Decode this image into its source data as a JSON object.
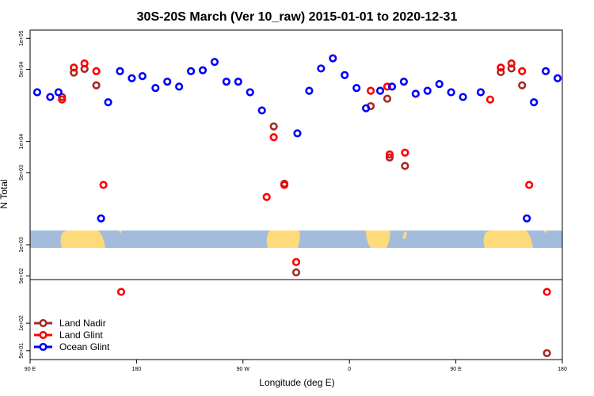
{
  "chart_data": {
    "type": "scatter",
    "title": "30S-20S March (Ver 10_raw)   2015-01-01 to 2020-12-31",
    "xlabel": "Longitude (deg E)",
    "ylabel": "N Total",
    "x_ticks": [
      {
        "value": 0,
        "label": "90 E"
      },
      {
        "value": 90,
        "label": "180"
      },
      {
        "value": 180,
        "label": "90 W"
      },
      {
        "value": 270,
        "label": "0"
      },
      {
        "value": 360,
        "label": "90 E"
      },
      {
        "value": 450,
        "label": "180"
      }
    ],
    "x_range": [
      0,
      450
    ],
    "upper_panel": {
      "scale": "log",
      "ylim": [
        460,
        120000
      ],
      "y_ticks": [
        {
          "value": 500,
          "label": "5e+02"
        },
        {
          "value": 1000,
          "label": "1e+03"
        },
        {
          "value": 5000,
          "label": "5e+03"
        },
        {
          "value": 10000,
          "label": "1e+04"
        },
        {
          "value": 50000,
          "label": "5e+04"
        },
        {
          "value": 100000,
          "label": "1e+05"
        }
      ],
      "map_band": {
        "ocean_color": "#a4bcdc",
        "land_color": "#fedb7a"
      }
    },
    "lower_panel": {
      "scale": "log",
      "ylim": [
        40,
        300
      ],
      "y_ticks": [
        {
          "value": 50,
          "label": "5e+01"
        },
        {
          "value": 100,
          "label": "1e+02"
        }
      ]
    },
    "series": [
      {
        "name": "Land Nadir",
        "color": "#a52a2a",
        "points": [
          {
            "x": 27,
            "y": 27000
          },
          {
            "x": 37,
            "y": 46500
          },
          {
            "x": 46,
            "y": 50500
          },
          {
            "x": 56,
            "y": 35000
          },
          {
            "x": 206,
            "y": 14000
          },
          {
            "x": 215,
            "y": 3900
          },
          {
            "x": 225,
            "y": 540
          },
          {
            "x": 288,
            "y": 22000
          },
          {
            "x": 302,
            "y": 26000
          },
          {
            "x": 304,
            "y": 7000
          },
          {
            "x": 317,
            "y": 5800
          },
          {
            "x": 398,
            "y": 47000
          },
          {
            "x": 407,
            "y": 51000
          },
          {
            "x": 416,
            "y": 35000
          },
          {
            "x": 437,
            "y": 47
          }
        ]
      },
      {
        "name": "Land Glint",
        "color": "#ff0000",
        "points": [
          {
            "x": 27,
            "y": 25500
          },
          {
            "x": 37,
            "y": 52000
          },
          {
            "x": 46,
            "y": 57000
          },
          {
            "x": 56,
            "y": 48000
          },
          {
            "x": 62,
            "y": 3800
          },
          {
            "x": 77,
            "y": 220
          },
          {
            "x": 200,
            "y": 2900
          },
          {
            "x": 206,
            "y": 11000
          },
          {
            "x": 215,
            "y": 3800
          },
          {
            "x": 225,
            "y": 680
          },
          {
            "x": 288,
            "y": 31000
          },
          {
            "x": 302,
            "y": 34000
          },
          {
            "x": 304,
            "y": 7500
          },
          {
            "x": 317,
            "y": 7800
          },
          {
            "x": 389,
            "y": 25500
          },
          {
            "x": 398,
            "y": 52000
          },
          {
            "x": 407,
            "y": 57000
          },
          {
            "x": 416,
            "y": 48000
          },
          {
            "x": 422,
            "y": 3800
          },
          {
            "x": 437,
            "y": 220
          }
        ]
      },
      {
        "name": "Ocean Glint",
        "color": "#0000ff",
        "points": [
          {
            "x": 6,
            "y": 30000
          },
          {
            "x": 17,
            "y": 27000
          },
          {
            "x": 24,
            "y": 30000
          },
          {
            "x": 60,
            "y": 1800
          },
          {
            "x": 66,
            "y": 24000
          },
          {
            "x": 76,
            "y": 48000
          },
          {
            "x": 86,
            "y": 41000
          },
          {
            "x": 95,
            "y": 43000
          },
          {
            "x": 106,
            "y": 33000
          },
          {
            "x": 116,
            "y": 38000
          },
          {
            "x": 126,
            "y": 34000
          },
          {
            "x": 136,
            "y": 48000
          },
          {
            "x": 146,
            "y": 49000
          },
          {
            "x": 156,
            "y": 59000
          },
          {
            "x": 166,
            "y": 38000
          },
          {
            "x": 176,
            "y": 38000
          },
          {
            "x": 186,
            "y": 30000
          },
          {
            "x": 196,
            "y": 20000
          },
          {
            "x": 226,
            "y": 12000
          },
          {
            "x": 236,
            "y": 31000
          },
          {
            "x": 246,
            "y": 51000
          },
          {
            "x": 256,
            "y": 64000
          },
          {
            "x": 266,
            "y": 44000
          },
          {
            "x": 276,
            "y": 33000
          },
          {
            "x": 284,
            "y": 21000
          },
          {
            "x": 296,
            "y": 31000
          },
          {
            "x": 306,
            "y": 34000
          },
          {
            "x": 316,
            "y": 38000
          },
          {
            "x": 326,
            "y": 29000
          },
          {
            "x": 336,
            "y": 31000
          },
          {
            "x": 346,
            "y": 36000
          },
          {
            "x": 356,
            "y": 30000
          },
          {
            "x": 366,
            "y": 27000
          },
          {
            "x": 381,
            "y": 30000
          },
          {
            "x": 420,
            "y": 1800
          },
          {
            "x": 426,
            "y": 24000
          },
          {
            "x": 436,
            "y": 48000
          },
          {
            "x": 446,
            "y": 41000
          }
        ]
      }
    ],
    "legend": {
      "position": "bottom-left"
    }
  }
}
